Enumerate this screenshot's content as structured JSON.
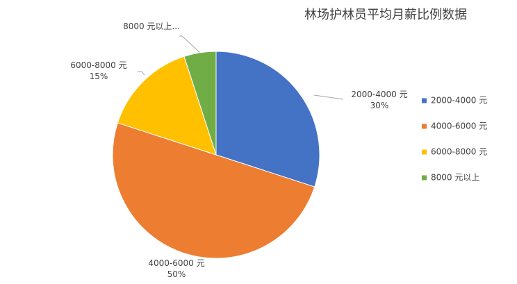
{
  "chart_data": {
    "type": "pie",
    "title": "林场护林员平均月薪比例数据",
    "categories": [
      "2000-4000 元",
      "4000-6000 元",
      "6000-8000 元",
      "8000 元以上"
    ],
    "values": [
      30,
      50,
      15,
      5
    ],
    "value_labels": [
      "30%",
      "50%",
      "15%",
      null
    ],
    "slice_labels": [
      "2000-4000 元",
      "4000-6000 元",
      "6000-8000 元",
      "8000 元以上..."
    ],
    "colors": [
      "#4472c4",
      "#ed7d31",
      "#ffc000",
      "#70ad47"
    ],
    "legend": "right"
  }
}
